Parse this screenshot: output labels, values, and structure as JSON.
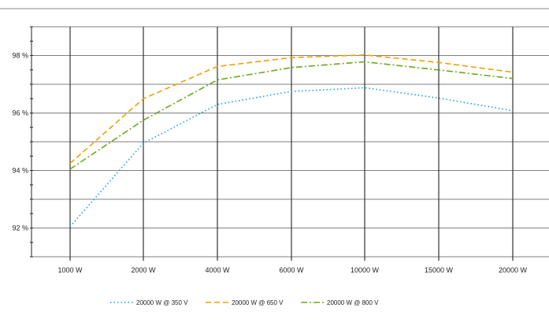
{
  "chart_data": {
    "type": "line",
    "title": "",
    "xlabel": "",
    "ylabel": "",
    "categories": [
      "1000 W",
      "2000 W",
      "4000 W",
      "6000 W",
      "10000 W",
      "15000 W",
      "20000 W"
    ],
    "ylim": [
      91,
      99
    ],
    "y_ticks": [
      {
        "value": 92,
        "label": "92 %"
      },
      {
        "value": 94,
        "label": "94 %"
      },
      {
        "value": 96,
        "label": "96 %"
      },
      {
        "value": 98,
        "label": "98 %"
      }
    ],
    "grid": true,
    "legend_position": "bottom",
    "series": [
      {
        "name": "20000 W @ 350 V",
        "color": "#1a9fd4",
        "style": "dotted",
        "values": [
          92.05,
          94.95,
          96.3,
          96.75,
          96.88,
          96.52,
          96.08
        ]
      },
      {
        "name": "20000 W @ 650 V",
        "color": "#f0a000",
        "style": "dashed",
        "values": [
          94.25,
          96.5,
          97.62,
          97.93,
          98.02,
          97.76,
          97.42
        ]
      },
      {
        "name": "20000 W @ 800 V",
        "color": "#6aaa1e",
        "style": "dashdot",
        "values": [
          94.05,
          95.75,
          97.15,
          97.58,
          97.78,
          97.5,
          97.2
        ]
      }
    ]
  }
}
